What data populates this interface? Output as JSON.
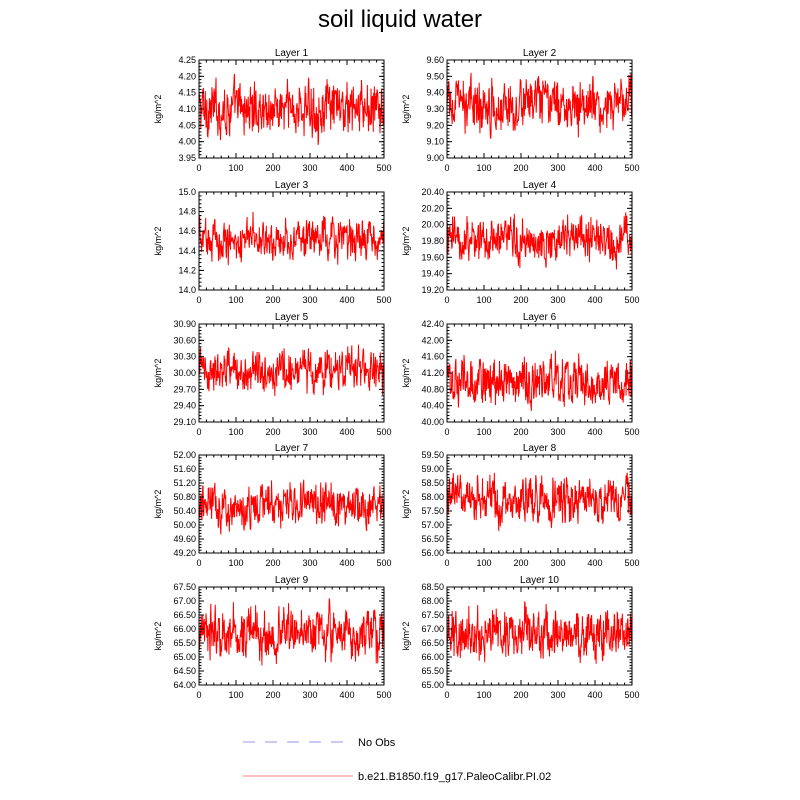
{
  "title": "soil liquid water",
  "legend": {
    "items": [
      {
        "label": "No Obs",
        "color": "#aaaaee",
        "style": "dashed"
      },
      {
        "label": "b.e21.B1850.f19_g17.PaleoCalibr.PI.02",
        "color": "#ff9999",
        "style": "solid"
      }
    ]
  },
  "chart_data": [
    {
      "type": "line",
      "title": "Layer 1",
      "ylabel": "kg/m^2",
      "xlim": [
        0,
        500
      ],
      "ylim": [
        3.95,
        4.25
      ],
      "xticks": [
        "0",
        "100",
        "200",
        "300",
        "400",
        "500"
      ],
      "yticks": [
        "3.95",
        "4.00",
        "4.05",
        "4.10",
        "4.15",
        "4.20",
        "4.25"
      ],
      "series": [
        {
          "color": "#ff0000",
          "x_start": 1,
          "x_end": 500,
          "n_points": 500,
          "mean": 4.1,
          "range": [
            3.96,
            4.23
          ]
        }
      ]
    },
    {
      "type": "line",
      "title": "Layer 2",
      "ylabel": "kg/m^2",
      "xlim": [
        0,
        500
      ],
      "ylim": [
        9.0,
        9.6
      ],
      "xticks": [
        "0",
        "100",
        "200",
        "300",
        "400",
        "500"
      ],
      "yticks": [
        "9.00",
        "9.10",
        "9.20",
        "9.30",
        "9.40",
        "9.50",
        "9.60"
      ],
      "series": [
        {
          "color": "#ff0000",
          "x_start": 1,
          "x_end": 500,
          "n_points": 500,
          "mean": 9.33,
          "range": [
            9.08,
            9.58
          ]
        }
      ]
    },
    {
      "type": "line",
      "title": "Layer 3",
      "ylabel": "kg/m^2",
      "xlim": [
        0,
        500
      ],
      "ylim": [
        14.0,
        15.0
      ],
      "xticks": [
        "0",
        "100",
        "200",
        "300",
        "400",
        "500"
      ],
      "yticks": [
        "14.0",
        "14.2",
        "14.4",
        "14.6",
        "14.8",
        "15.0"
      ],
      "series": [
        {
          "color": "#ff0000",
          "x_start": 1,
          "x_end": 500,
          "n_points": 500,
          "mean": 14.52,
          "range": [
            14.18,
            14.86
          ]
        }
      ]
    },
    {
      "type": "line",
      "title": "Layer 4",
      "ylabel": "kg/m^2",
      "xlim": [
        0,
        500
      ],
      "ylim": [
        19.2,
        20.4
      ],
      "xticks": [
        "0",
        "100",
        "200",
        "300",
        "400",
        "500"
      ],
      "yticks": [
        "19.20",
        "19.40",
        "19.60",
        "19.80",
        "20.00",
        "20.20",
        "20.40"
      ],
      "series": [
        {
          "color": "#ff0000",
          "x_start": 1,
          "x_end": 500,
          "n_points": 500,
          "mean": 19.82,
          "range": [
            19.36,
            20.28
          ]
        }
      ]
    },
    {
      "type": "line",
      "title": "Layer 5",
      "ylabel": "kg/m^2",
      "xlim": [
        0,
        500
      ],
      "ylim": [
        29.1,
        30.9
      ],
      "xticks": [
        "0",
        "100",
        "200",
        "300",
        "400",
        "500"
      ],
      "yticks": [
        "29.10",
        "29.40",
        "29.70",
        "30.00",
        "30.30",
        "30.60",
        "30.90"
      ],
      "series": [
        {
          "color": "#ff0000",
          "x_start": 1,
          "x_end": 500,
          "n_points": 500,
          "mean": 30.05,
          "range": [
            29.45,
            30.75
          ]
        }
      ]
    },
    {
      "type": "line",
      "title": "Layer 6",
      "ylabel": "kg/m^2",
      "xlim": [
        0,
        500
      ],
      "ylim": [
        40.0,
        42.4
      ],
      "xticks": [
        "0",
        "100",
        "200",
        "300",
        "400",
        "500"
      ],
      "yticks": [
        "40.00",
        "40.40",
        "40.80",
        "41.20",
        "41.60",
        "42.00",
        "42.40"
      ],
      "series": [
        {
          "color": "#ff0000",
          "x_start": 1,
          "x_end": 500,
          "n_points": 500,
          "mean": 41.0,
          "range": [
            40.05,
            42.0
          ]
        }
      ]
    },
    {
      "type": "line",
      "title": "Layer 7",
      "ylabel": "kg/m^2",
      "xlim": [
        0,
        500
      ],
      "ylim": [
        49.2,
        52.0
      ],
      "xticks": [
        "0",
        "100",
        "200",
        "300",
        "400",
        "500"
      ],
      "yticks": [
        "49.20",
        "49.60",
        "50.00",
        "50.40",
        "50.80",
        "51.20",
        "51.60",
        "52.00"
      ],
      "series": [
        {
          "color": "#ff0000",
          "x_start": 1,
          "x_end": 500,
          "n_points": 500,
          "mean": 50.55,
          "range": [
            49.5,
            51.5
          ]
        }
      ]
    },
    {
      "type": "line",
      "title": "Layer 8",
      "ylabel": "kg/m^2",
      "xlim": [
        0,
        500
      ],
      "ylim": [
        56.0,
        59.5
      ],
      "xticks": [
        "0",
        "100",
        "200",
        "300",
        "400",
        "500"
      ],
      "yticks": [
        "56.00",
        "56.50",
        "57.00",
        "57.50",
        "58.00",
        "58.50",
        "59.00",
        "59.50"
      ],
      "series": [
        {
          "color": "#ff0000",
          "x_start": 1,
          "x_end": 500,
          "n_points": 500,
          "mean": 57.9,
          "range": [
            56.6,
            59.25
          ]
        }
      ]
    },
    {
      "type": "line",
      "title": "Layer 9",
      "ylabel": "kg/m^2",
      "xlim": [
        0,
        500
      ],
      "ylim": [
        64.0,
        67.5
      ],
      "xticks": [
        "0",
        "100",
        "200",
        "300",
        "400",
        "500"
      ],
      "yticks": [
        "64.00",
        "64.50",
        "65.00",
        "65.50",
        "66.00",
        "66.50",
        "67.00",
        "67.50"
      ],
      "series": [
        {
          "color": "#ff0000",
          "x_start": 1,
          "x_end": 500,
          "n_points": 500,
          "mean": 65.85,
          "range": [
            64.4,
            67.4
          ]
        }
      ]
    },
    {
      "type": "line",
      "title": "Layer 10",
      "ylabel": "kg/m^2",
      "xlim": [
        0,
        500
      ],
      "ylim": [
        65.0,
        68.5
      ],
      "xticks": [
        "0",
        "100",
        "200",
        "300",
        "400",
        "500"
      ],
      "yticks": [
        "65.00",
        "65.50",
        "66.00",
        "66.50",
        "67.00",
        "67.50",
        "68.00",
        "68.50"
      ],
      "series": [
        {
          "color": "#ff0000",
          "x_start": 1,
          "x_end": 500,
          "n_points": 500,
          "mean": 66.8,
          "range": [
            65.3,
            68.3
          ]
        }
      ]
    }
  ]
}
